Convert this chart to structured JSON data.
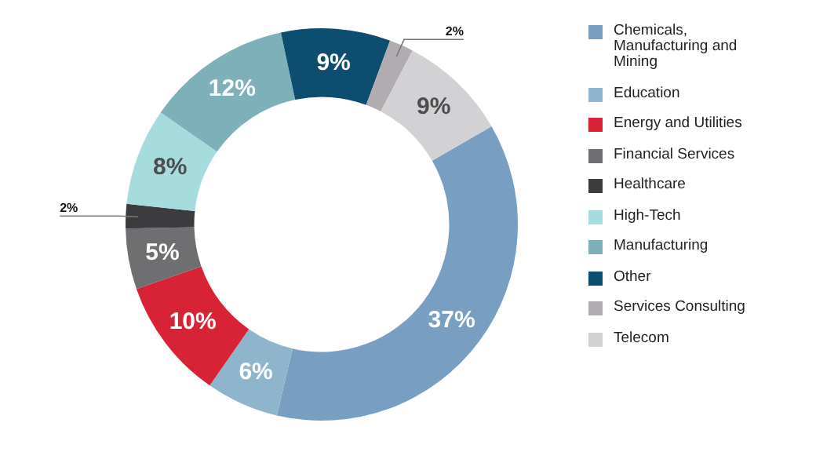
{
  "chart_data": {
    "type": "donut",
    "categories": [
      "Chemicals, Manufacturing and Mining",
      "Education",
      "Energy and Utilities",
      "Financial Services",
      "Healthcare",
      "High-Tech",
      "Manufacturing",
      "Other",
      "Services Consulting",
      "Telecom"
    ],
    "values": [
      37,
      6,
      10,
      5,
      2,
      8,
      12,
      9,
      2,
      9
    ],
    "value_labels": [
      "37%",
      "6%",
      "10%",
      "5%",
      "2%",
      "8%",
      "12%",
      "9%",
      "2%",
      "9%"
    ],
    "colors": [
      "#789fc1",
      "#8fb5cd",
      "#d82236",
      "#6f6e71",
      "#3c3b3e",
      "#a7dcdf",
      "#7db0b8",
      "#0d4d6f",
      "#b1acb0",
      "#d2d2d4"
    ],
    "legend": "right"
  }
}
